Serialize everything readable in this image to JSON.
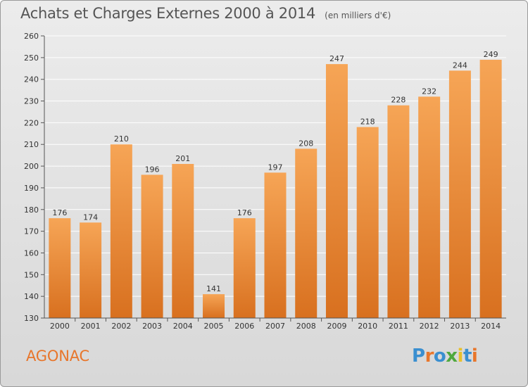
{
  "title": "Achats et Charges Externes 2000 à 2014",
  "unit": "(en milliers d'€)",
  "place": "AGONAC",
  "logo": {
    "text": "Proxiti",
    "colors": [
      "#3a8fd0",
      "#e8762b",
      "#3a8fd0",
      "#4fa83d",
      "#e8c02b",
      "#3a8fd0",
      "#e8762b"
    ]
  },
  "colors": {
    "bar_light": "#f6a556",
    "bar_dark": "#d8701f",
    "grid": "#ffffff",
    "place": "#e8762b"
  },
  "chart_data": {
    "type": "bar",
    "title": "Achats et Charges Externes 2000 à 2014",
    "categories": [
      "2000",
      "2001",
      "2002",
      "2003",
      "2004",
      "2005",
      "2006",
      "2007",
      "2008",
      "2009",
      "2010",
      "2011",
      "2012",
      "2013",
      "2014"
    ],
    "values": [
      176,
      174,
      210,
      196,
      201,
      141,
      176,
      197,
      208,
      247,
      218,
      228,
      232,
      244,
      249
    ],
    "ylim": [
      130,
      260
    ],
    "yticks": [
      130,
      140,
      150,
      160,
      170,
      180,
      190,
      200,
      210,
      220,
      230,
      240,
      250,
      260
    ],
    "grid": true,
    "xlabel": "",
    "ylabel": ""
  }
}
